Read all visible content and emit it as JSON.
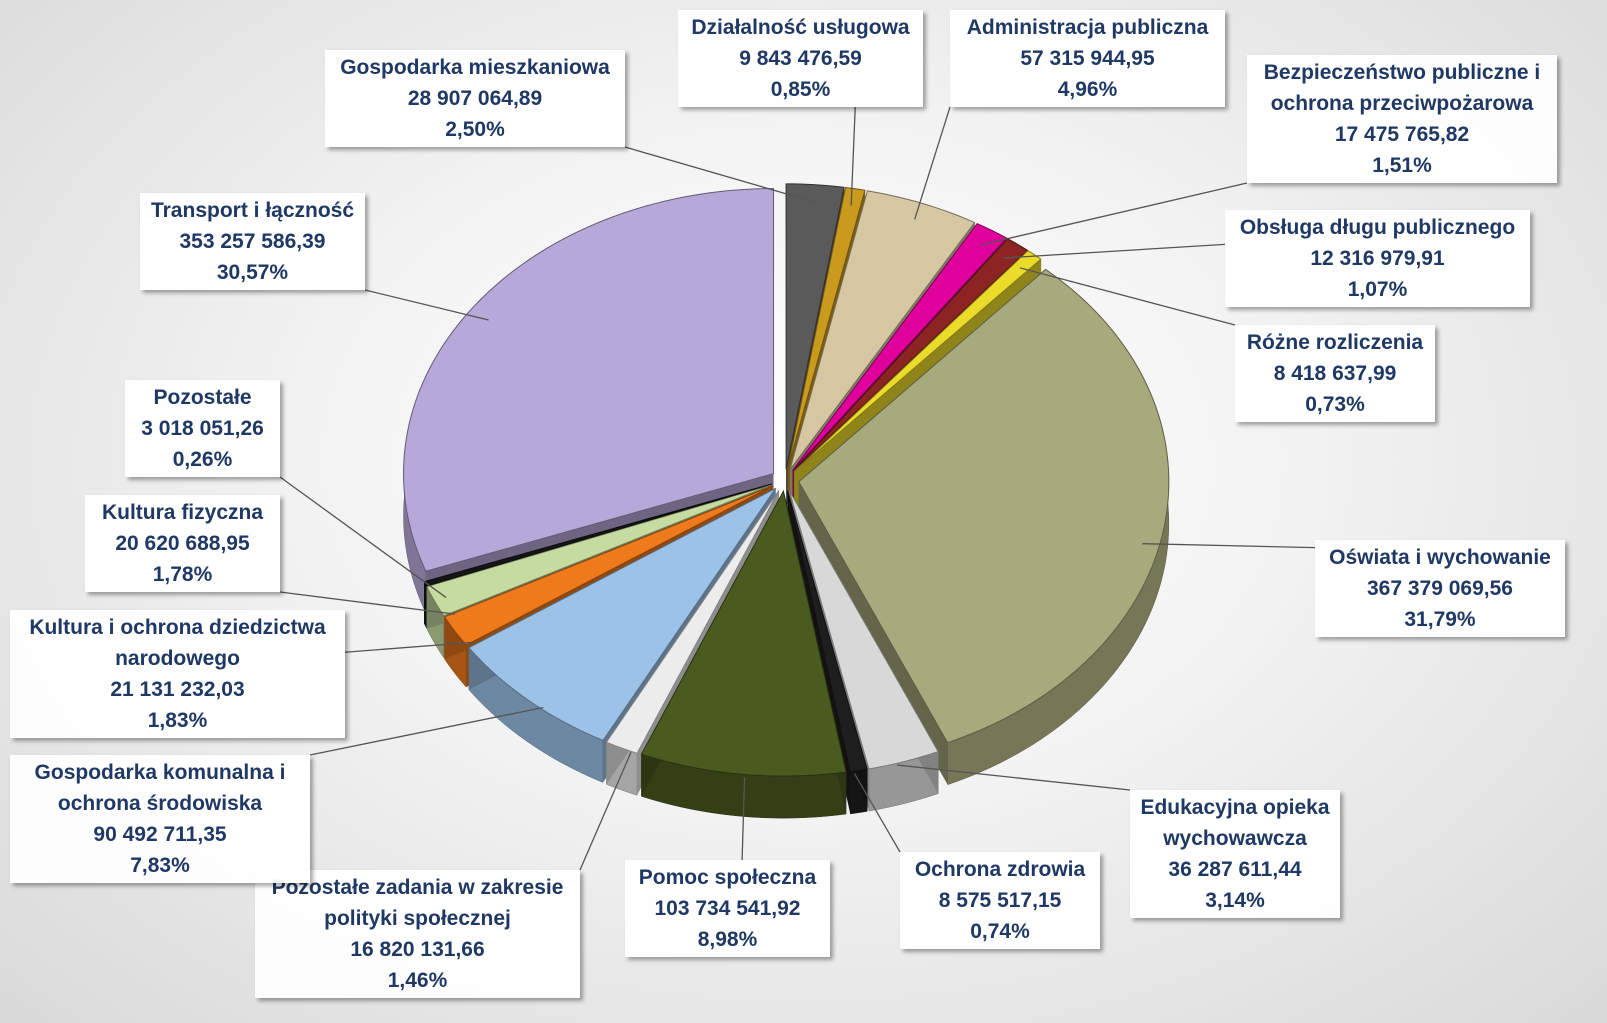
{
  "chart_data": {
    "type": "pie",
    "categories": [
      "Gospodarka mieszkaniowa",
      "Działalność usługowa",
      "Administracja publiczna",
      "Bezpieczeństwo publiczne i ochrona przeciwpożarowa",
      "Obsługa długu publicznego",
      "Różne rozliczenia",
      "Oświata i wychowanie",
      "Edukacyjna opieka wychowawcza",
      "Ochrona zdrowia",
      "Pomoc społeczna",
      "Pozostałe zadania w zakresie polityki społecznej",
      "Gospodarka komunalna i ochrona środowiska",
      "Kultura i ochrona dziedzictwa narodowego",
      "Kultura fizyczna",
      "Pozostałe",
      "Transport i łączność"
    ],
    "values": [
      28907064.89,
      9843476.59,
      57315944.95,
      17475765.82,
      12316979.91,
      8418637.99,
      367379069.56,
      36287611.44,
      8575517.15,
      103734541.92,
      16820131.66,
      90492711.35,
      21131232.03,
      20620688.95,
      3018051.26,
      353257586.39
    ],
    "value_labels": [
      "28 907 064,89",
      "9 843 476,59",
      "57 315 944,95",
      "17 475 765,82",
      "12 316 979,91",
      "8 418 637,99",
      "367 379 069,56",
      "36 287 611,44",
      "8 575 517,15",
      "103 734 541,92",
      "16 820 131,66",
      "90 492 711,35",
      "21 131 232,03",
      "20 620 688,95",
      "3 018 051,26",
      "353 257 586,39"
    ],
    "percents": [
      2.5,
      0.85,
      4.96,
      1.51,
      1.07,
      0.73,
      31.79,
      3.14,
      0.74,
      8.98,
      1.46,
      7.83,
      1.83,
      1.78,
      0.26,
      30.57
    ],
    "percent_labels": [
      "2,50%",
      "0,85%",
      "4,96%",
      "1,51%",
      "1,07%",
      "0,73%",
      "31,79%",
      "3,14%",
      "0,74%",
      "8,98%",
      "1,46%",
      "7,83%",
      "1,83%",
      "1,78%",
      "0,26%",
      "30,57%"
    ],
    "colors": [
      "#5a5a5a",
      "#c99a1e",
      "#d6c7a3",
      "#e0009c",
      "#8c2424",
      "#ecdc2a",
      "#a7aa7c",
      "#d8d8d8",
      "#1e1e1e",
      "#4b5a1f",
      "#ececec",
      "#9cc2e8",
      "#ee7a1c",
      "#c6dba0",
      "#161616",
      "#b6a8d8"
    ]
  }
}
